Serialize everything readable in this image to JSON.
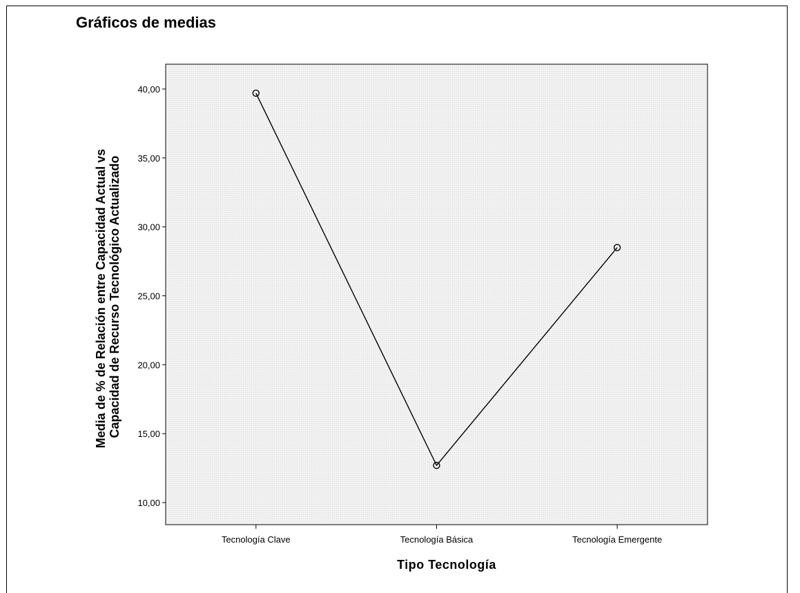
{
  "heading": "Gráficos de medias",
  "chart_data": {
    "type": "line",
    "categories": [
      "Tecnología Clave",
      "Tecnología Básica",
      "Tecnología Emergente"
    ],
    "series": [
      {
        "values": [
          39.7,
          12.7,
          28.5
        ]
      }
    ],
    "xlabel": "Tipo Tecnología",
    "ylabel_lines": [
      "Media de % de Relación entre Capacidad Actual vs",
      "Capacidad de Recurso Tecnológico Actualizado"
    ],
    "yticks": [
      10,
      15,
      20,
      25,
      30,
      35,
      40
    ],
    "ytick_labels": [
      "10,00",
      "15,00",
      "20,00",
      "25,00",
      "30,00",
      "35,00",
      "40,00"
    ],
    "ylim": [
      8.4,
      41.8
    ],
    "grid": false,
    "marker": "open-circle",
    "colors": {
      "line": "#000000",
      "plot_background": "#f0f0f0"
    }
  }
}
